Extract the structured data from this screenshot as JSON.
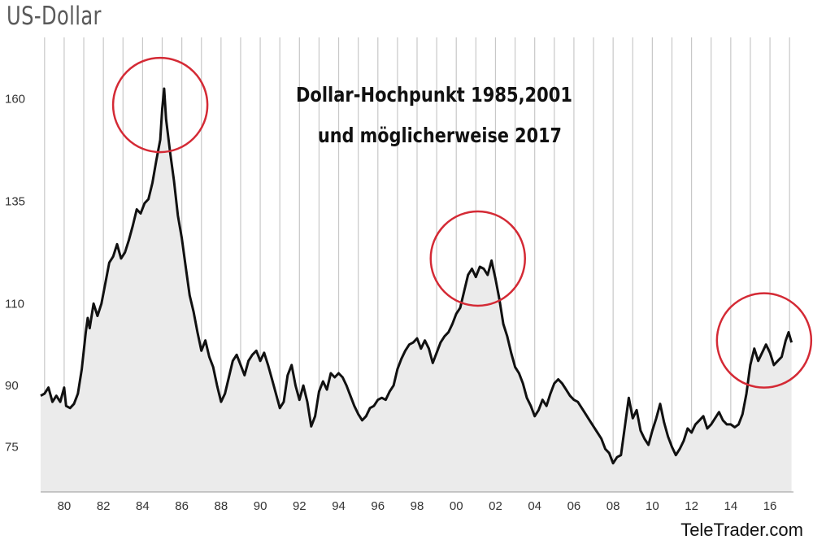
{
  "title": "US-Dollar",
  "brand": "TeleTrader.com",
  "colors": {
    "line": "#111111",
    "area": "#ebebeb",
    "grid": "#c8c8c8",
    "circle": "#d42a35",
    "plot_bg": "#ffffff"
  },
  "chart_data": {
    "type": "area",
    "title": "US-Dollar",
    "xlabel": "",
    "ylabel": "",
    "xlim": [
      1978.8,
      2017.2
    ],
    "ylim": [
      64,
      175
    ],
    "grid": "vertical yearly lines",
    "yticks": [
      75,
      90,
      110,
      135,
      160
    ],
    "xticks": [
      {
        "year": 1980,
        "label": "80"
      },
      {
        "year": 1982,
        "label": "82"
      },
      {
        "year": 1984,
        "label": "84"
      },
      {
        "year": 1986,
        "label": "86"
      },
      {
        "year": 1988,
        "label": "88"
      },
      {
        "year": 1990,
        "label": "90"
      },
      {
        "year": 1992,
        "label": "92"
      },
      {
        "year": 1994,
        "label": "94"
      },
      {
        "year": 1996,
        "label": "96"
      },
      {
        "year": 1998,
        "label": "98"
      },
      {
        "year": 2000,
        "label": "00"
      },
      {
        "year": 2002,
        "label": "02"
      },
      {
        "year": 2004,
        "label": "04"
      },
      {
        "year": 2006,
        "label": "06"
      },
      {
        "year": 2008,
        "label": "08"
      },
      {
        "year": 2010,
        "label": "10"
      },
      {
        "year": 2012,
        "label": "12"
      },
      {
        "year": 2014,
        "label": "14"
      },
      {
        "year": 2016,
        "label": "16"
      }
    ],
    "annotation_lines": [
      "Dollar-Hochpunkt 1985,2001",
      "und möglicherweise 2017"
    ],
    "highlights": [
      {
        "x": 1984.9,
        "y": 158.5,
        "label": "1985"
      },
      {
        "x": 2001.1,
        "y": 121,
        "label": "2001"
      },
      {
        "x": 2015.7,
        "y": 101,
        "label": "2017"
      }
    ],
    "series": [
      {
        "points": [
          [
            1978.8,
            87.5
          ],
          [
            1979.0,
            88.0
          ],
          [
            1979.2,
            89.5
          ],
          [
            1979.4,
            86.0
          ],
          [
            1979.6,
            87.5
          ],
          [
            1979.8,
            86.0
          ],
          [
            1980.0,
            89.5
          ],
          [
            1980.1,
            85.0
          ],
          [
            1980.3,
            84.5
          ],
          [
            1980.5,
            85.5
          ],
          [
            1980.7,
            88.0
          ],
          [
            1980.9,
            94.0
          ],
          [
            1981.1,
            103.0
          ],
          [
            1981.2,
            106.5
          ],
          [
            1981.3,
            104.0
          ],
          [
            1981.5,
            110.0
          ],
          [
            1981.7,
            107.0
          ],
          [
            1981.9,
            110.0
          ],
          [
            1982.1,
            115.0
          ],
          [
            1982.3,
            120.0
          ],
          [
            1982.5,
            121.5
          ],
          [
            1982.7,
            124.5
          ],
          [
            1982.9,
            121.0
          ],
          [
            1983.1,
            122.5
          ],
          [
            1983.3,
            125.5
          ],
          [
            1983.5,
            129.0
          ],
          [
            1983.7,
            133.0
          ],
          [
            1983.9,
            132.0
          ],
          [
            1984.1,
            134.5
          ],
          [
            1984.3,
            135.5
          ],
          [
            1984.5,
            139.5
          ],
          [
            1984.7,
            145.0
          ],
          [
            1984.9,
            150.0
          ],
          [
            1985.0,
            157.5
          ],
          [
            1985.1,
            162.5
          ],
          [
            1985.2,
            155.0
          ],
          [
            1985.4,
            147.0
          ],
          [
            1985.6,
            140.0
          ],
          [
            1985.8,
            131.5
          ],
          [
            1986.0,
            126.0
          ],
          [
            1986.2,
            119.0
          ],
          [
            1986.4,
            112.0
          ],
          [
            1986.6,
            108.0
          ],
          [
            1986.8,
            103.0
          ],
          [
            1987.0,
            98.5
          ],
          [
            1987.2,
            101.0
          ],
          [
            1987.4,
            97.0
          ],
          [
            1987.6,
            94.5
          ],
          [
            1987.8,
            90.0
          ],
          [
            1988.0,
            86.0
          ],
          [
            1988.2,
            88.0
          ],
          [
            1988.4,
            92.0
          ],
          [
            1988.6,
            96.0
          ],
          [
            1988.8,
            97.5
          ],
          [
            1989.0,
            95.0
          ],
          [
            1989.2,
            92.5
          ],
          [
            1989.4,
            96.0
          ],
          [
            1989.6,
            97.5
          ],
          [
            1989.8,
            98.5
          ],
          [
            1990.0,
            96.0
          ],
          [
            1990.2,
            98.0
          ],
          [
            1990.4,
            95.0
          ],
          [
            1990.6,
            91.5
          ],
          [
            1990.8,
            88.0
          ],
          [
            1991.0,
            84.5
          ],
          [
            1991.2,
            86.0
          ],
          [
            1991.4,
            92.5
          ],
          [
            1991.6,
            95.0
          ],
          [
            1991.8,
            90.0
          ],
          [
            1992.0,
            86.5
          ],
          [
            1992.2,
            90.0
          ],
          [
            1992.4,
            86.0
          ],
          [
            1992.6,
            80.0
          ],
          [
            1992.8,
            82.5
          ],
          [
            1993.0,
            88.5
          ],
          [
            1993.2,
            91.0
          ],
          [
            1993.4,
            89.0
          ],
          [
            1993.6,
            93.0
          ],
          [
            1993.8,
            92.0
          ],
          [
            1994.0,
            93.0
          ],
          [
            1994.2,
            92.0
          ],
          [
            1994.4,
            90.0
          ],
          [
            1994.6,
            87.5
          ],
          [
            1994.8,
            85.0
          ],
          [
            1995.0,
            83.0
          ],
          [
            1995.2,
            81.5
          ],
          [
            1995.4,
            82.5
          ],
          [
            1995.6,
            84.5
          ],
          [
            1995.8,
            85.0
          ],
          [
            1996.0,
            86.5
          ],
          [
            1996.2,
            87.0
          ],
          [
            1996.4,
            86.5
          ],
          [
            1996.6,
            88.5
          ],
          [
            1996.8,
            90.0
          ],
          [
            1997.0,
            94.0
          ],
          [
            1997.2,
            96.5
          ],
          [
            1997.4,
            98.5
          ],
          [
            1997.6,
            100.0
          ],
          [
            1997.8,
            100.5
          ],
          [
            1998.0,
            101.5
          ],
          [
            1998.2,
            99.0
          ],
          [
            1998.4,
            101.0
          ],
          [
            1998.6,
            99.0
          ],
          [
            1998.8,
            95.5
          ],
          [
            1999.0,
            98.0
          ],
          [
            1999.2,
            100.5
          ],
          [
            1999.4,
            102.0
          ],
          [
            1999.6,
            103.0
          ],
          [
            1999.8,
            105.0
          ],
          [
            2000.0,
            107.5
          ],
          [
            2000.2,
            109.0
          ],
          [
            2000.4,
            113.0
          ],
          [
            2000.6,
            117.0
          ],
          [
            2000.8,
            118.5
          ],
          [
            2001.0,
            116.5
          ],
          [
            2001.2,
            119.0
          ],
          [
            2001.4,
            118.5
          ],
          [
            2001.6,
            117.0
          ],
          [
            2001.8,
            120.5
          ],
          [
            2002.0,
            116.0
          ],
          [
            2002.2,
            111.0
          ],
          [
            2002.4,
            105.0
          ],
          [
            2002.6,
            102.0
          ],
          [
            2002.8,
            98.0
          ],
          [
            2003.0,
            94.5
          ],
          [
            2003.2,
            93.0
          ],
          [
            2003.4,
            90.5
          ],
          [
            2003.6,
            87.0
          ],
          [
            2003.8,
            85.0
          ],
          [
            2004.0,
            82.5
          ],
          [
            2004.2,
            84.0
          ],
          [
            2004.4,
            86.5
          ],
          [
            2004.6,
            85.0
          ],
          [
            2004.8,
            88.0
          ],
          [
            2005.0,
            90.5
          ],
          [
            2005.2,
            91.5
          ],
          [
            2005.4,
            90.5
          ],
          [
            2005.6,
            89.0
          ],
          [
            2005.8,
            87.5
          ],
          [
            2006.0,
            86.5
          ],
          [
            2006.2,
            86.0
          ],
          [
            2006.4,
            84.5
          ],
          [
            2006.6,
            83.0
          ],
          [
            2006.8,
            81.5
          ],
          [
            2007.0,
            80.0
          ],
          [
            2007.2,
            78.5
          ],
          [
            2007.4,
            77.0
          ],
          [
            2007.6,
            74.5
          ],
          [
            2007.8,
            73.5
          ],
          [
            2008.0,
            71.0
          ],
          [
            2008.2,
            72.5
          ],
          [
            2008.4,
            73.0
          ],
          [
            2008.6,
            80.0
          ],
          [
            2008.8,
            87.0
          ],
          [
            2009.0,
            82.0
          ],
          [
            2009.2,
            84.0
          ],
          [
            2009.4,
            79.0
          ],
          [
            2009.6,
            77.0
          ],
          [
            2009.8,
            75.5
          ],
          [
            2010.0,
            79.0
          ],
          [
            2010.2,
            82.0
          ],
          [
            2010.4,
            85.5
          ],
          [
            2010.6,
            81.0
          ],
          [
            2010.8,
            77.5
          ],
          [
            2011.0,
            75.0
          ],
          [
            2011.2,
            73.0
          ],
          [
            2011.4,
            74.5
          ],
          [
            2011.6,
            76.5
          ],
          [
            2011.8,
            79.5
          ],
          [
            2012.0,
            78.5
          ],
          [
            2012.2,
            80.5
          ],
          [
            2012.4,
            81.5
          ],
          [
            2012.6,
            82.5
          ],
          [
            2012.8,
            79.5
          ],
          [
            2013.0,
            80.5
          ],
          [
            2013.2,
            82.0
          ],
          [
            2013.4,
            83.5
          ],
          [
            2013.6,
            81.5
          ],
          [
            2013.8,
            80.5
          ],
          [
            2014.0,
            80.5
          ],
          [
            2014.2,
            79.8
          ],
          [
            2014.4,
            80.5
          ],
          [
            2014.6,
            83.0
          ],
          [
            2014.8,
            88.0
          ],
          [
            2015.0,
            95.0
          ],
          [
            2015.2,
            99.0
          ],
          [
            2015.4,
            96.0
          ],
          [
            2015.6,
            98.0
          ],
          [
            2015.8,
            100.0
          ],
          [
            2016.0,
            98.0
          ],
          [
            2016.2,
            95.0
          ],
          [
            2016.4,
            96.0
          ],
          [
            2016.6,
            97.0
          ],
          [
            2016.8,
            101.0
          ],
          [
            2016.95,
            103.0
          ],
          [
            2017.1,
            100.5
          ]
        ]
      }
    ]
  }
}
